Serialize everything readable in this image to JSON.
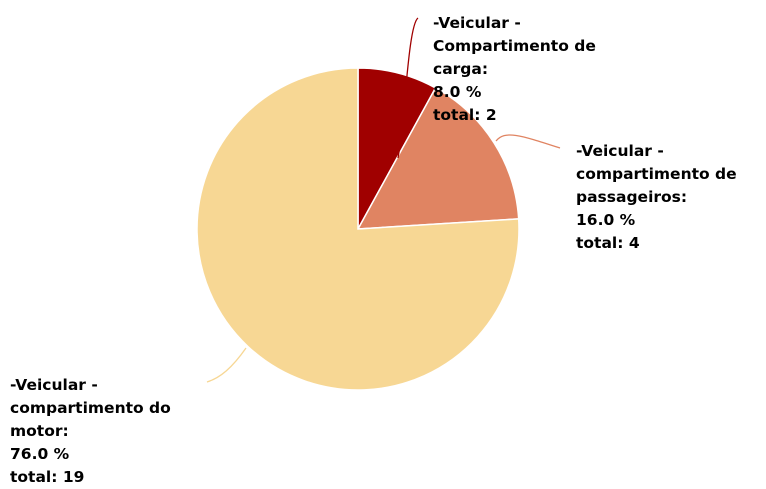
{
  "chart_data": {
    "type": "pie",
    "categories": [
      "-Veicular - Compartimento de carga:",
      "-Veicular - compartimento de passageiros:",
      "-Veicular - compartimento do motor:"
    ],
    "values": [
      8,
      16,
      76
    ],
    "value_labels": [
      "8.0 %",
      "16.0 %",
      "76.0 %"
    ],
    "counts": [
      2,
      4,
      19
    ],
    "count_labels": [
      "total: 2",
      "total: 4",
      "total: 19"
    ],
    "colors": [
      "#a00000",
      "#e08462",
      "#f7d794"
    ]
  }
}
